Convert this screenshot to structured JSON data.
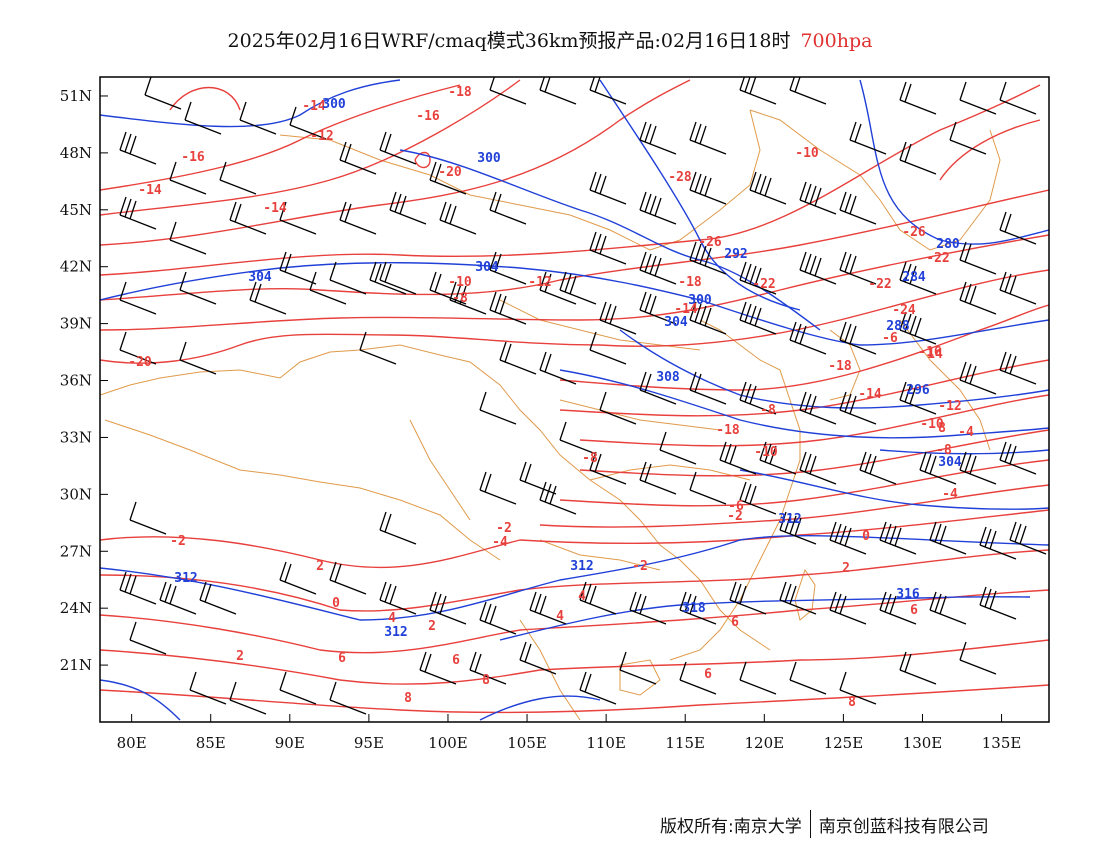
{
  "title": {
    "main": "2025年02月16日WRF/cmaq模式36km预报产品:02月16日18时",
    "level": "700hpa"
  },
  "map": {
    "lon_ticks": [
      "80E",
      "85E",
      "90E",
      "95E",
      "100E",
      "105E",
      "110E",
      "115E",
      "120E",
      "125E",
      "130E",
      "135E"
    ],
    "lat_ticks": [
      "51N",
      "48N",
      "45N",
      "42N",
      "39N",
      "36N",
      "33N",
      "30N",
      "27N",
      "24N",
      "21N"
    ],
    "lon_range": [
      78,
      138
    ],
    "lat_range": [
      18,
      52
    ],
    "colors": {
      "temperature": "#e8403c",
      "geopotential": "#2040d8",
      "boundary": "#e09a4a",
      "wind": "#000000"
    },
    "temperature_labels": [
      "-14",
      "-18",
      "-16",
      "-12",
      "-16",
      "-14",
      "-20",
      "-28",
      "-10",
      "-14",
      "-26",
      "-26",
      "-22",
      "-22",
      "-10",
      "-8",
      "-12",
      "-18",
      "-14",
      "-22",
      "-24",
      "-20",
      "-6",
      "-18",
      "-14",
      "-16",
      "-12",
      "-18",
      "-8",
      "-10",
      "-8",
      "-6",
      "-10",
      "-8",
      "-4",
      "-2",
      "-4",
      "-2",
      "0",
      "-4",
      "-2",
      "2",
      "0",
      "-2",
      "2",
      "4",
      "4",
      "2",
      "2",
      "6",
      "4",
      "6",
      "6",
      "6",
      "8",
      "8",
      "6",
      "8",
      "8",
      "14"
    ],
    "height_labels": [
      "300",
      "300",
      "292",
      "280",
      "284",
      "304",
      "304",
      "300",
      "304",
      "288",
      "308",
      "296",
      "304",
      "312",
      "312",
      "312",
      "318",
      "316",
      "312"
    ]
  },
  "footer": {
    "left": "版权所有:南京大学",
    "right": "南京创蓝科技有限公司"
  }
}
